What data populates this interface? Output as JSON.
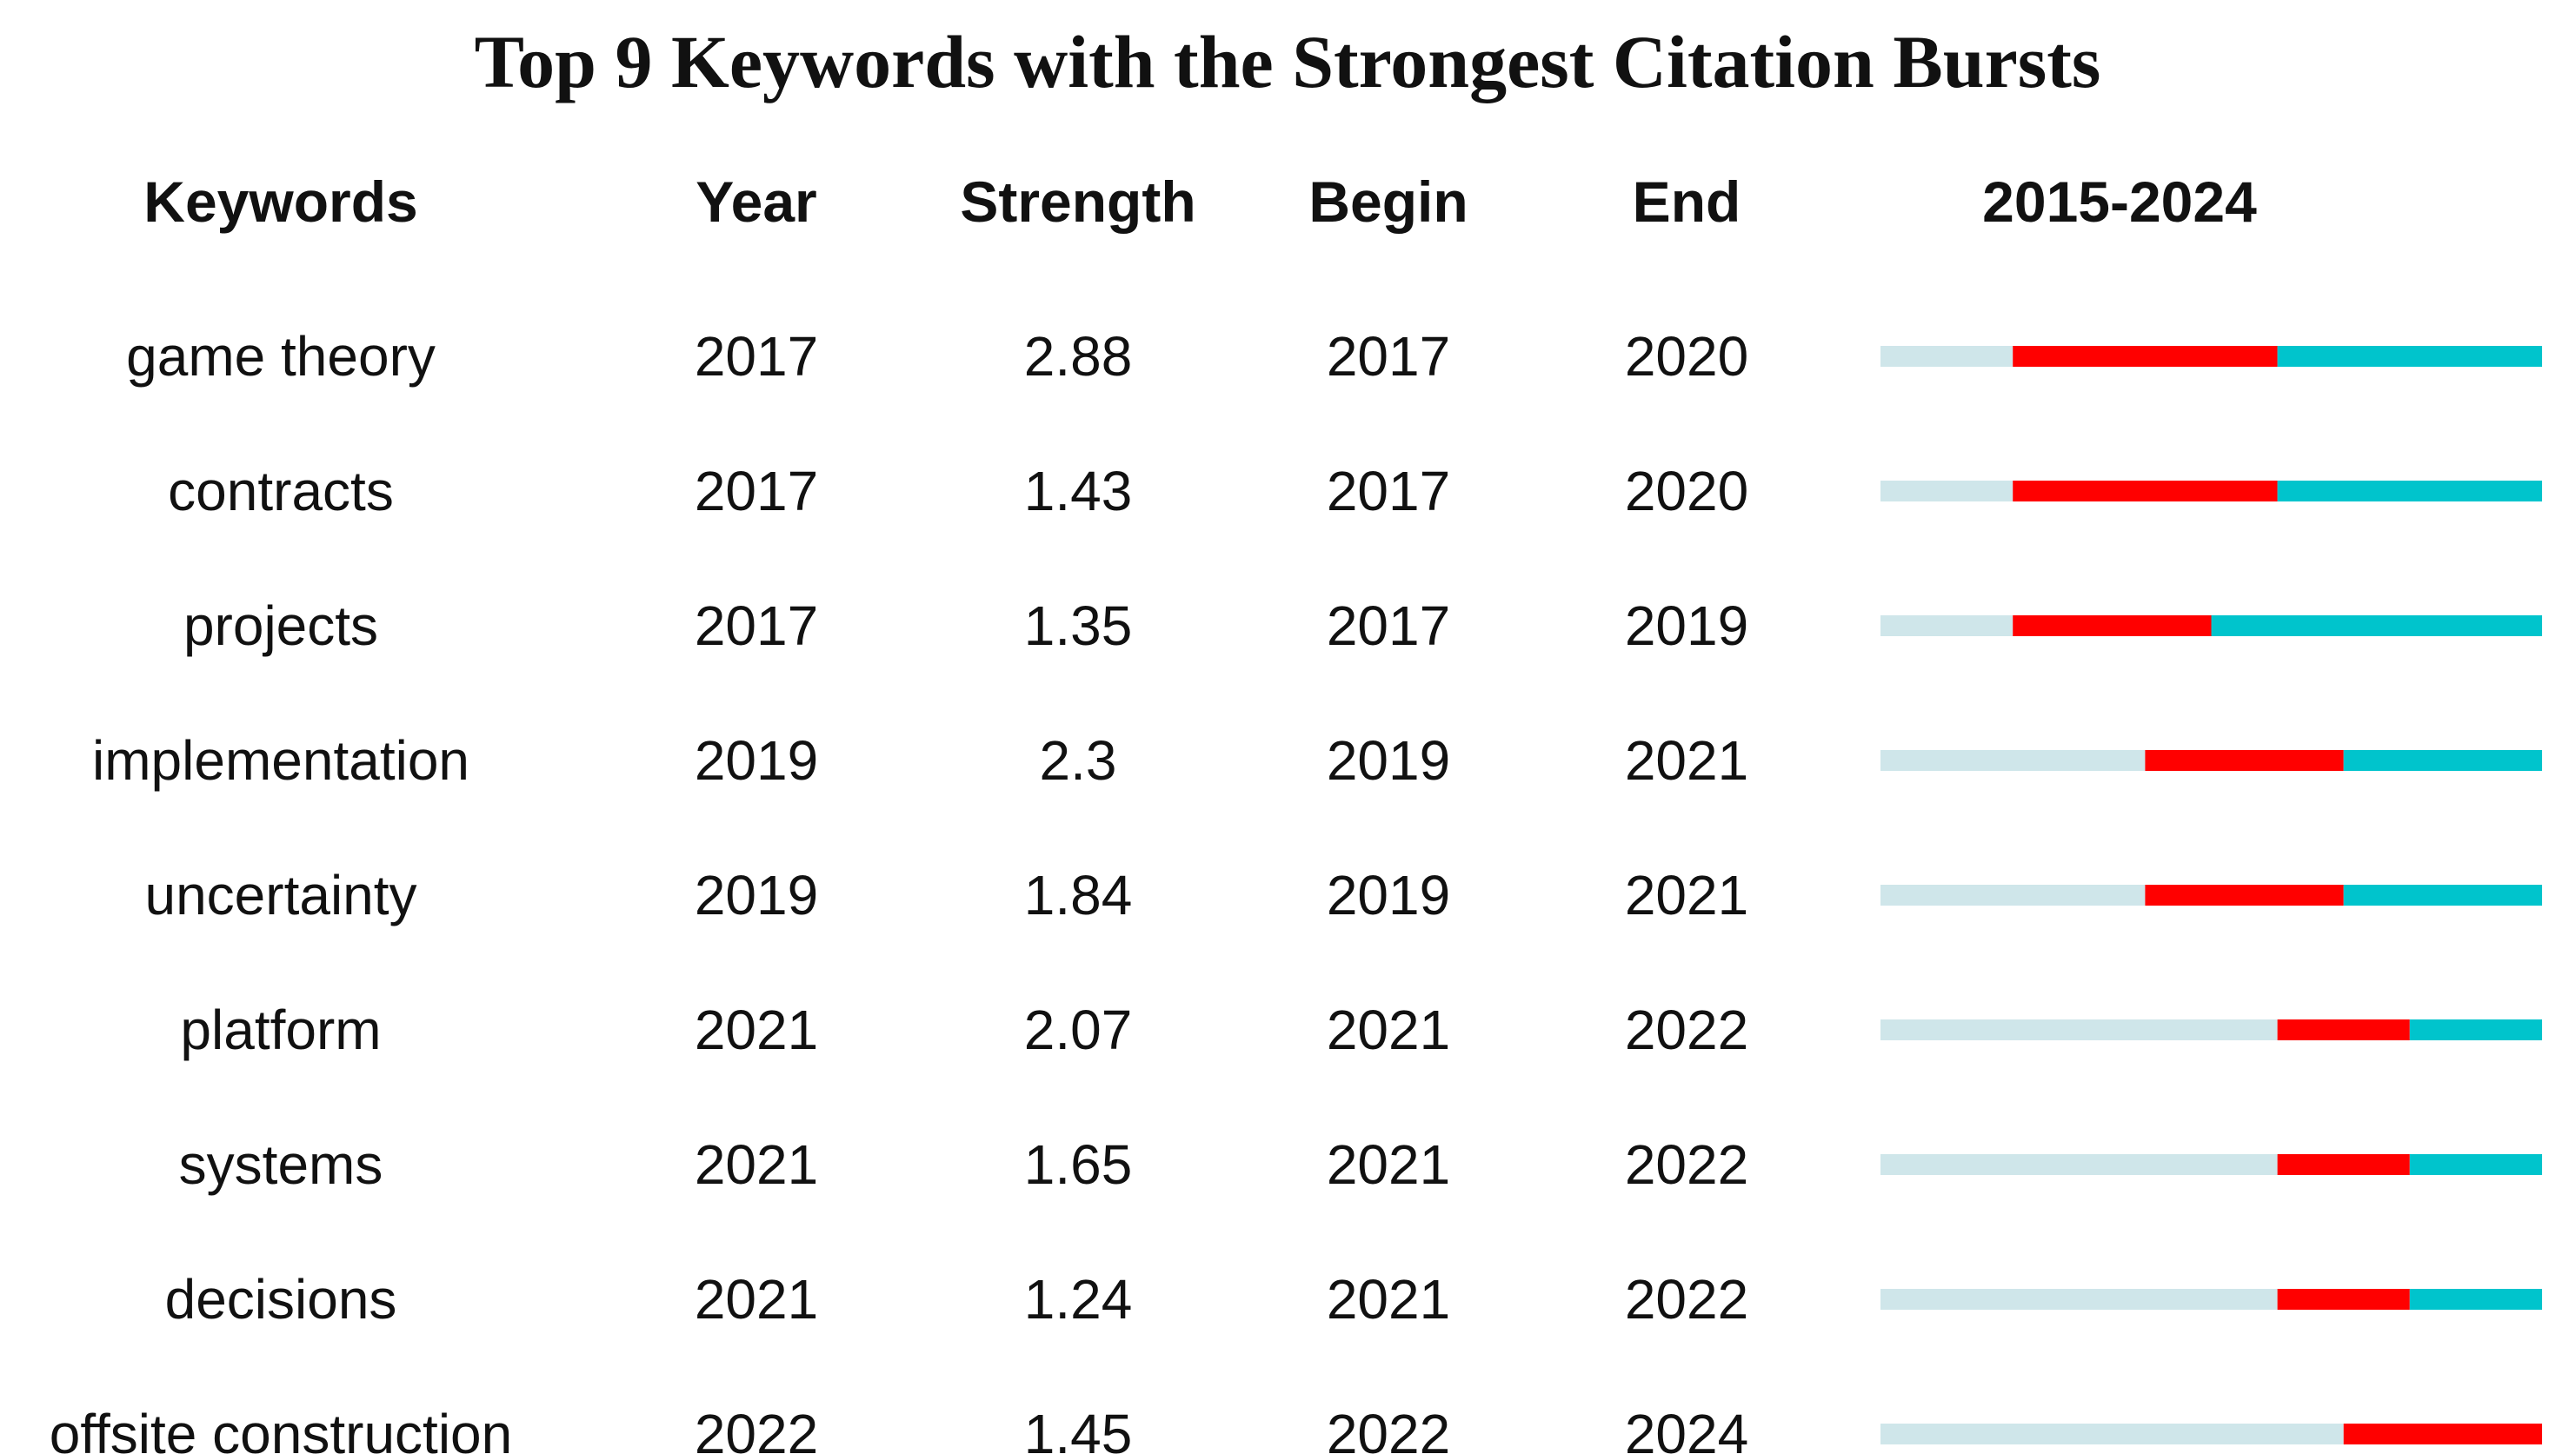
{
  "chart_data": {
    "type": "table",
    "title": "Top 9 Keywords with the Strongest Citation Bursts",
    "columns": [
      "Keywords",
      "Year",
      "Strength",
      "Begin",
      "End",
      "2015-2024"
    ],
    "timeline": {
      "start": 2015,
      "end": 2024
    },
    "rows": [
      {
        "keyword": "game theory",
        "year": "2017",
        "strength": "2.88",
        "begin": "2017",
        "end": "2020"
      },
      {
        "keyword": "contracts",
        "year": "2017",
        "strength": "1.43",
        "begin": "2017",
        "end": "2020"
      },
      {
        "keyword": "projects",
        "year": "2017",
        "strength": "1.35",
        "begin": "2017",
        "end": "2019"
      },
      {
        "keyword": "implementation",
        "year": "2019",
        "strength": "2.3",
        "begin": "2019",
        "end": "2021"
      },
      {
        "keyword": "uncertainty",
        "year": "2019",
        "strength": "1.84",
        "begin": "2019",
        "end": "2021"
      },
      {
        "keyword": "platform",
        "year": "2021",
        "strength": "2.07",
        "begin": "2021",
        "end": "2022"
      },
      {
        "keyword": "systems",
        "year": "2021",
        "strength": "1.65",
        "begin": "2021",
        "end": "2022"
      },
      {
        "keyword": "decisions",
        "year": "2021",
        "strength": "1.24",
        "begin": "2021",
        "end": "2022"
      },
      {
        "keyword": "offsite construction",
        "year": "2022",
        "strength": "1.45",
        "begin": "2022",
        "end": "2024"
      }
    ],
    "colors": {
      "burst": "#ff0000",
      "active": "#00c4cc",
      "inactive": "#cfe6ea",
      "text": "#111111"
    }
  }
}
